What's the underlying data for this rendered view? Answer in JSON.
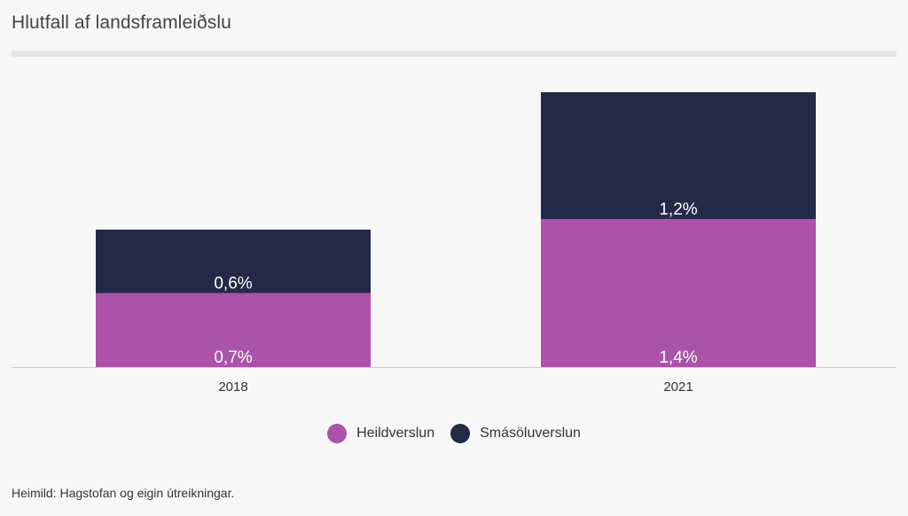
{
  "title": "Hlutfall af landsframleiðslu",
  "source": "Heimild: Hagstofan og eigin útreikningar.",
  "colors": {
    "heildverslun": "#ab53a8",
    "smasoluverslun": "#232a48"
  },
  "legend": [
    {
      "label": "Heildverslun",
      "color": "#ab53a8"
    },
    {
      "label": "Smásöluverslun",
      "color": "#232a48"
    }
  ],
  "chart_data": {
    "type": "bar",
    "stacked": true,
    "categories": [
      "2018",
      "2021"
    ],
    "series": [
      {
        "name": "Heildverslun",
        "values": [
          0.7,
          1.4
        ],
        "labels": [
          "0,7%",
          "1,4%"
        ],
        "color": "#ab53a8"
      },
      {
        "name": "Smásöluverslun",
        "values": [
          0.6,
          1.2
        ],
        "labels": [
          "0,6%",
          "1,2%"
        ],
        "color": "#232a48"
      }
    ],
    "ylim": [
      0,
      2.6
    ],
    "xlabel": "",
    "ylabel": "",
    "legend_position": "bottom-center"
  }
}
